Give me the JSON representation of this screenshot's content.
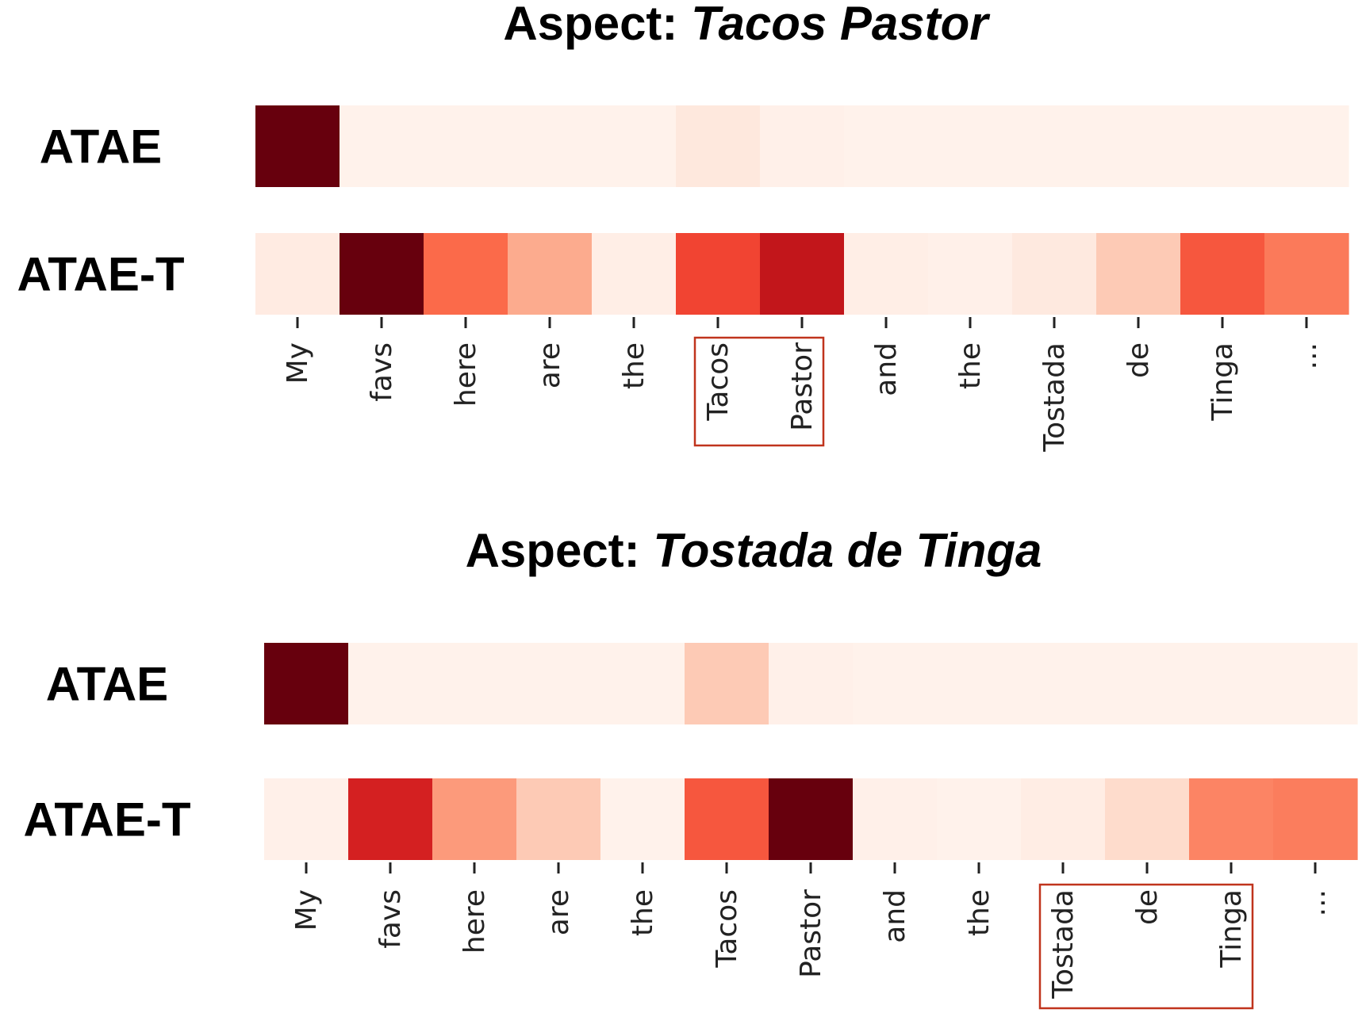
{
  "chart_data": [
    {
      "type": "heatmap",
      "title_prefix": "Aspect: ",
      "aspect": "Tacos Pastor",
      "colormap": "Reds",
      "tokens": [
        "My",
        "favs",
        "here",
        "are",
        "the",
        "Tacos",
        "Pastor",
        "and",
        "the",
        "Tostada",
        "de",
        "Tinga",
        "..."
      ],
      "highlighted_tokens": [
        5,
        6
      ],
      "rows": [
        {
          "label": "ATAE",
          "values": [
            1.0,
            0.02,
            0.02,
            0.02,
            0.02,
            0.08,
            0.03,
            0.02,
            0.02,
            0.02,
            0.02,
            0.02,
            0.02
          ]
        },
        {
          "label": "ATAE-T",
          "values": [
            0.06,
            1.0,
            0.5,
            0.3,
            0.04,
            0.6,
            0.78,
            0.04,
            0.03,
            0.07,
            0.2,
            0.55,
            0.45
          ]
        }
      ]
    },
    {
      "type": "heatmap",
      "title_prefix": "Aspect: ",
      "aspect": "Tostada de Tinga",
      "colormap": "Reds",
      "tokens": [
        "My",
        "favs",
        "here",
        "are",
        "the",
        "Tacos",
        "Pastor",
        "and",
        "the",
        "Tostada",
        "de",
        "Tinga",
        "..."
      ],
      "highlighted_tokens": [
        9,
        10,
        11
      ],
      "rows": [
        {
          "label": "ATAE",
          "values": [
            1.0,
            0.02,
            0.02,
            0.02,
            0.02,
            0.2,
            0.03,
            0.02,
            0.02,
            0.02,
            0.02,
            0.02,
            0.02
          ]
        },
        {
          "label": "ATAE-T",
          "values": [
            0.03,
            0.72,
            0.35,
            0.2,
            0.02,
            0.55,
            1.0,
            0.03,
            0.02,
            0.05,
            0.14,
            0.42,
            0.44
          ]
        }
      ]
    }
  ]
}
